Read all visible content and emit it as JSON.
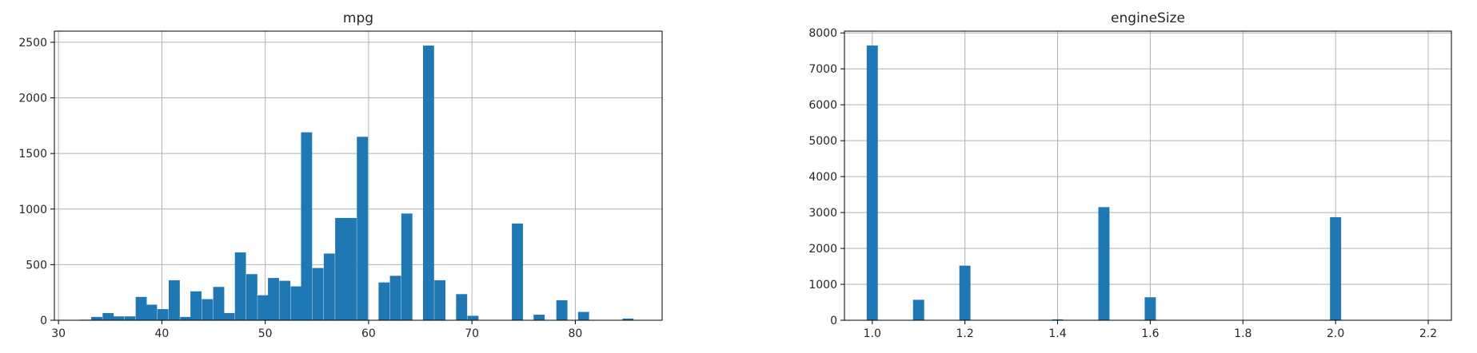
{
  "chart_data": [
    {
      "type": "histogram",
      "title": "mpg",
      "xlabel": "",
      "ylabel": "",
      "xlim": [
        29.6,
        88.4
      ],
      "ylim": [
        0,
        2600
      ],
      "xticks": [
        30,
        40,
        50,
        60,
        70,
        80
      ],
      "yticks": [
        0,
        500,
        1000,
        1500,
        2000,
        2500
      ],
      "grid": true,
      "color": "#1f77b4",
      "bin_width": 1.07,
      "bins": [
        {
          "x": 32.6,
          "count": 5
        },
        {
          "x": 33.7,
          "count": 30
        },
        {
          "x": 34.8,
          "count": 65
        },
        {
          "x": 35.8,
          "count": 35
        },
        {
          "x": 36.9,
          "count": 35
        },
        {
          "x": 38.0,
          "count": 210
        },
        {
          "x": 39.0,
          "count": 140
        },
        {
          "x": 40.1,
          "count": 100
        },
        {
          "x": 41.2,
          "count": 360
        },
        {
          "x": 42.3,
          "count": 30
        },
        {
          "x": 43.3,
          "count": 260
        },
        {
          "x": 44.4,
          "count": 190
        },
        {
          "x": 45.5,
          "count": 300
        },
        {
          "x": 46.5,
          "count": 65
        },
        {
          "x": 47.6,
          "count": 610
        },
        {
          "x": 48.7,
          "count": 415
        },
        {
          "x": 49.8,
          "count": 225
        },
        {
          "x": 50.8,
          "count": 380
        },
        {
          "x": 51.9,
          "count": 355
        },
        {
          "x": 53.0,
          "count": 305
        },
        {
          "x": 54.0,
          "count": 1690
        },
        {
          "x": 55.1,
          "count": 470
        },
        {
          "x": 56.2,
          "count": 600
        },
        {
          "x": 57.3,
          "count": 920
        },
        {
          "x": 58.3,
          "count": 920
        },
        {
          "x": 59.4,
          "count": 1650
        },
        {
          "x": 61.5,
          "count": 340
        },
        {
          "x": 62.6,
          "count": 400
        },
        {
          "x": 63.7,
          "count": 960
        },
        {
          "x": 65.8,
          "count": 2470
        },
        {
          "x": 66.9,
          "count": 360
        },
        {
          "x": 69.0,
          "count": 235
        },
        {
          "x": 70.1,
          "count": 40
        },
        {
          "x": 74.4,
          "count": 870
        },
        {
          "x": 76.5,
          "count": 50
        },
        {
          "x": 78.7,
          "count": 180
        },
        {
          "x": 80.8,
          "count": 75
        },
        {
          "x": 85.1,
          "count": 15
        }
      ]
    },
    {
      "type": "histogram",
      "title": "engineSize",
      "xlabel": "",
      "ylabel": "",
      "xlim": [
        0.94,
        2.25
      ],
      "ylim": [
        0,
        8050
      ],
      "xticks": [
        "1.0",
        "1.2",
        "1.4",
        "1.6",
        "1.8",
        "2.0",
        "2.2"
      ],
      "yticks": [
        0,
        1000,
        2000,
        3000,
        4000,
        5000,
        6000,
        7000,
        8000
      ],
      "grid": true,
      "color": "#1f77b4",
      "bin_width": 0.024,
      "bins": [
        {
          "x": 1.0,
          "count": 7650
        },
        {
          "x": 1.1,
          "count": 570
        },
        {
          "x": 1.2,
          "count": 1520
        },
        {
          "x": 1.4,
          "count": 25
        },
        {
          "x": 1.5,
          "count": 3150
        },
        {
          "x": 1.6,
          "count": 640
        },
        {
          "x": 2.0,
          "count": 2870
        }
      ]
    }
  ]
}
